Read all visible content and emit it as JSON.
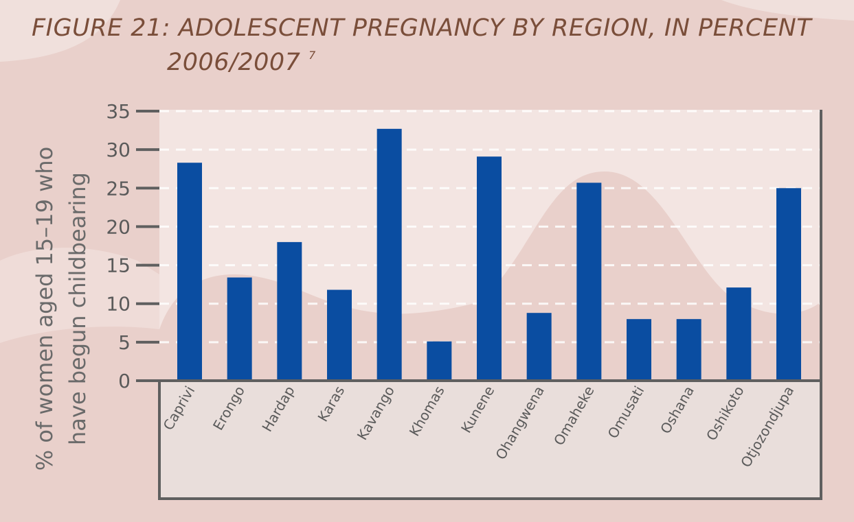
{
  "colors": {
    "background": "#e9d0cb",
    "background_light": "#f1e1de",
    "bar": "#0a4da1",
    "axis": "#5f5f5f",
    "grid": "#ffffff",
    "title": "#7a4e3a",
    "label_panel": "#e9dedb"
  },
  "chart_data": {
    "type": "bar",
    "title": "FIGURE 21: ADOLESCENT PREGNANCY BY REGION, IN PERCENT",
    "subtitle": "2006/2007",
    "footnote_marker": "7",
    "ylabel_line1": "% of women aged 15–19 who",
    "ylabel_line2": "have begun childbearing",
    "xlabel": "",
    "ylim": [
      0,
      35
    ],
    "yticks": [
      0,
      5,
      10,
      15,
      20,
      25,
      30,
      35
    ],
    "grid": true,
    "categories": [
      "Caprivi",
      "Erongo",
      "Hardap",
      "Karas",
      "Kavango",
      "Khomas",
      "Kunene",
      "Ohangwena",
      "Omaheke",
      "Omusati",
      "Oshana",
      "Oshikoto",
      "Otjozondjupa"
    ],
    "values": [
      28.3,
      13.4,
      18.0,
      11.8,
      32.7,
      5.1,
      29.1,
      8.8,
      25.7,
      8.0,
      8.0,
      12.1,
      25.0
    ]
  }
}
